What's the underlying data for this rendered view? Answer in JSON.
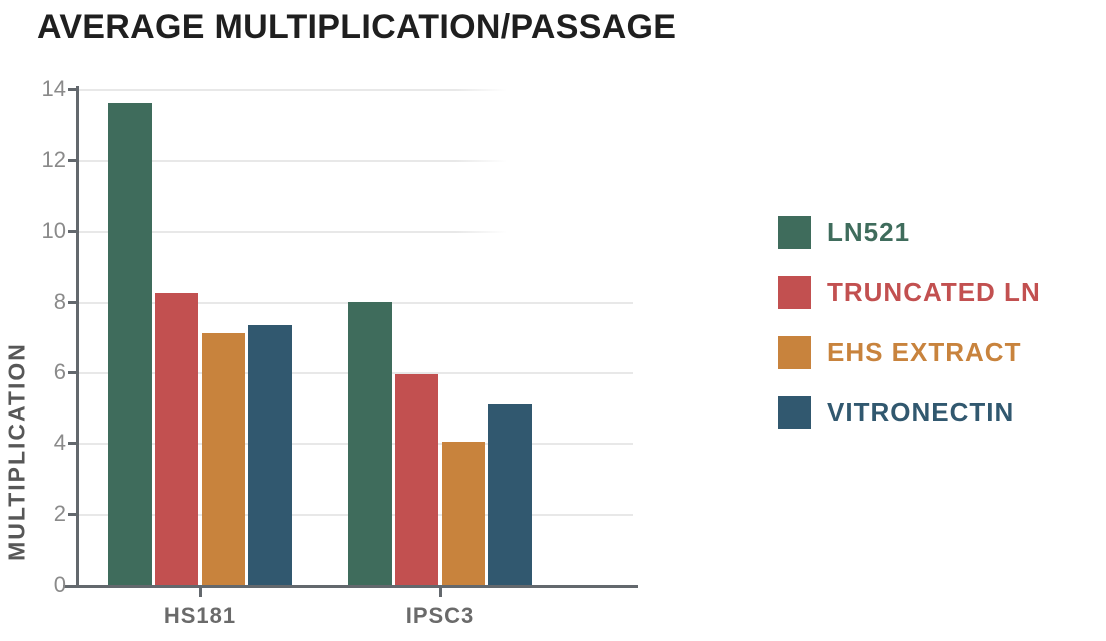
{
  "chart_data": {
    "type": "bar",
    "title": "AVERAGE MULTIPLICATION/PASSAGE",
    "categories": [
      "HS181",
      "IPSC3"
    ],
    "series": [
      {
        "name": "LN521",
        "color": "#3F6C5C",
        "values": [
          13.6,
          8.0
        ]
      },
      {
        "name": "TRUNCATED LN",
        "color": "#C25050",
        "values": [
          8.25,
          5.95
        ]
      },
      {
        "name": "EHS EXTRACT",
        "color": "#C8833D",
        "values": [
          7.1,
          4.05
        ]
      },
      {
        "name": "VITRONECTIN",
        "color": "#31586F",
        "values": [
          7.35,
          5.1
        ]
      }
    ],
    "xlabel": "",
    "ylabel": "MULTIPLICATION",
    "ylim": [
      0,
      14
    ],
    "ytick_step": 2,
    "grid": true,
    "legend_position": "right",
    "colors": {
      "title": "#1F1F1F",
      "axis": "#63686D",
      "gridline": "#E8E8E8",
      "tick_label": "#8A8A8A",
      "category_label": "#6A6A6A",
      "axis_title": "#575757"
    }
  }
}
